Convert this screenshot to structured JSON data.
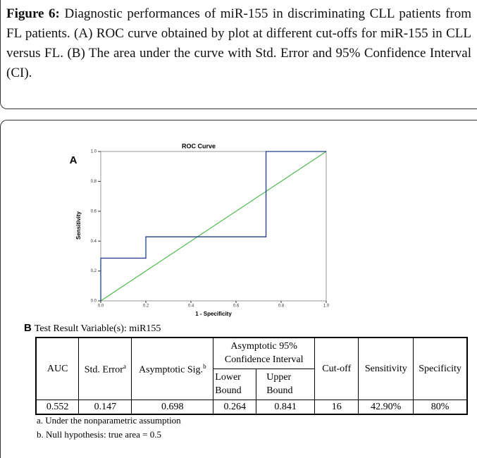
{
  "caption": {
    "label": "Figure 6:",
    "text": "Diagnostic performances of miR-155 in discriminating CLL patients from FL patients. (A) ROC curve obtained by plot at different cut-offs for miR-155 in CLL versus FL. (B) The area under the curve with Std. Error and 95% Confidence Interval (CI)."
  },
  "chart_data": {
    "type": "line",
    "panel": "A",
    "title": "ROC Curve",
    "x_label": "1 - Specificity",
    "y_label": "Sensitivity",
    "x": [
      0,
      0,
      0.2,
      0.2,
      0.733,
      0.733,
      1
    ],
    "series": [
      {
        "color": "#1f3d8c",
        "values": [
          0,
          0.286,
          0.286,
          0.429,
          0.429,
          1,
          1
        ]
      }
    ],
    "xlim": [
      0,
      1
    ],
    "ylim": [
      0,
      1
    ],
    "xticks": [
      {
        "value": 0,
        "label": "0.0"
      },
      0.2,
      0.4,
      0.6,
      0.8,
      {
        "value": 1,
        "label": "1.0"
      }
    ],
    "yticks": [
      {
        "value": 0,
        "label": "0.0"
      },
      0.2,
      0.4,
      0.6,
      0.8,
      {
        "value": 1,
        "label": "1.0"
      }
    ],
    "reference_color": "#4cba4c"
  },
  "table": {
    "panel": "B",
    "title": "Test Result Variable(s): miR155",
    "headers": [
      {
        "text": "AUC"
      },
      {
        "text": "Std. Error",
        "sup": "a"
      },
      {
        "text": "Asymptotic Sig.",
        "sup": "b"
      },
      {
        "text": "Asymptotic 95% Confidence Interval"
      },
      {
        "text": "Cut-off"
      },
      {
        "text": "Sensitivity"
      },
      {
        "text": "Specificity"
      }
    ],
    "subheaders": [
      "Lower Bound",
      "Upper Bound"
    ],
    "rows": [
      [
        "0.552",
        "0.147",
        "0.698",
        "0.264",
        "0.841",
        "16",
        "42.90%",
        "80%"
      ]
    ],
    "footnotes": [
      "a. Under the nonparametric assumption",
      "b. Null hypothesis: true area = 0.5"
    ]
  }
}
